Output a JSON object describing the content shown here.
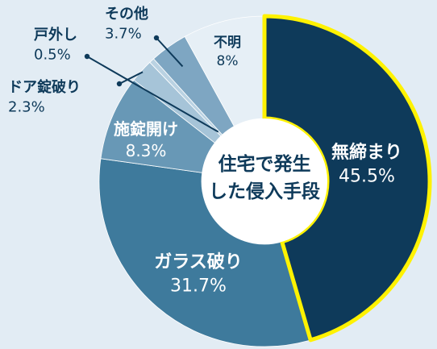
{
  "chart_data": {
    "type": "pie",
    "variant": "donut",
    "title": "住宅で発生した侵入手段",
    "title_lines": [
      "住宅で発生",
      "した侵入手段"
    ],
    "slices": [
      {
        "label": "無締まり",
        "value": 45.5,
        "value_text": "45.5%",
        "color": "#0e3a5a",
        "outline": "#fff200",
        "label_color": "#ffffff"
      },
      {
        "label": "ガラス破り",
        "value": 31.7,
        "value_text": "31.7%",
        "color": "#3e7a9c",
        "label_color": "#ffffff"
      },
      {
        "label": "施錠開け",
        "value": 8.3,
        "value_text": "8.3%",
        "color": "#6898b6",
        "label_color": "#ffffff"
      },
      {
        "label": "ドア錠破り",
        "value": 2.3,
        "value_text": "2.3%",
        "color": "#a6c4d8",
        "label_color": "#0e3a5a"
      },
      {
        "label": "戸外し",
        "value": 0.5,
        "value_text": "0.5%",
        "color": "#bad2e2",
        "label_color": "#0e3a5a"
      },
      {
        "label": "その他",
        "value": 3.7,
        "value_text": "3.7%",
        "color": "#7ea6c2",
        "label_color": "#0e3a5a"
      },
      {
        "label": "不明",
        "value": 8.0,
        "value_text": "8%",
        "color": "#e6eff6",
        "label_color": "#0e3a5a"
      }
    ],
    "colors": {
      "background": "#e2ecf4",
      "leader_line": "#0e3a5a",
      "center_fill": "#ffffff",
      "center_text": "#0e3a5a"
    },
    "legend": "none"
  }
}
